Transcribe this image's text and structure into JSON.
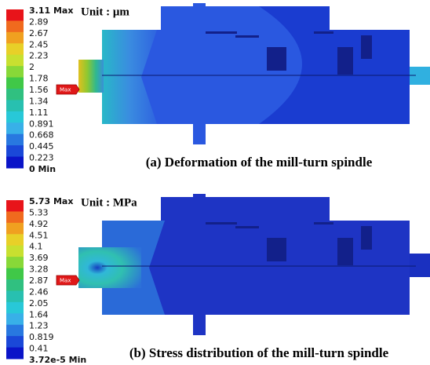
{
  "panels": [
    {
      "legend": [
        "3.11 Max",
        "2.89",
        "2.67",
        "2.45",
        "2.23",
        "2",
        "1.78",
        "1.56",
        "1.34",
        "1.11",
        "0.891",
        "0.668",
        "0.445",
        "0.223",
        "0 Min"
      ],
      "unit": "Unit : μm",
      "max_tag": "Max",
      "caption": "(a) Deformation of the mill-turn spindle"
    },
    {
      "legend": [
        "5.73 Max",
        "5.33",
        "4.92",
        "4.51",
        "4.1",
        "3.69",
        "3.28",
        "2.87",
        "2.46",
        "2.05",
        "1.64",
        "1.23",
        "0.819",
        "0.41",
        "3.72e-5 Min"
      ],
      "unit": "Unit : MPa",
      "max_tag": "Max",
      "caption": "(b) Stress distribution of the mill-turn spindle"
    }
  ]
}
